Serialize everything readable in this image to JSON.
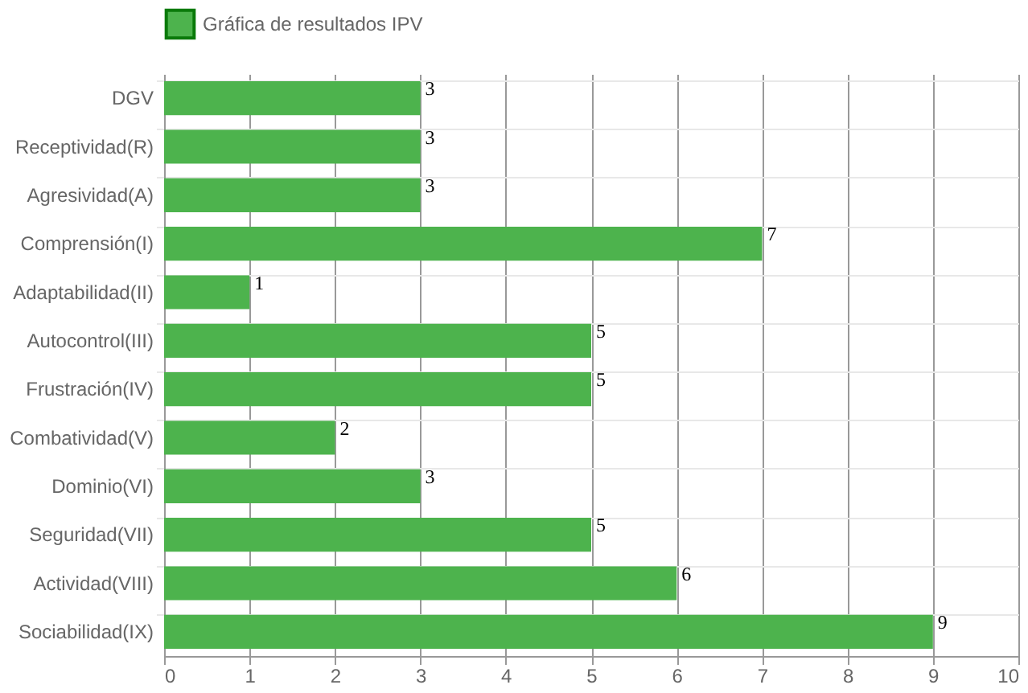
{
  "chart_data": {
    "type": "bar",
    "orientation": "horizontal",
    "categories": [
      "DGV",
      "Receptividad(R)",
      "Agresividad(A)",
      "Comprensión(I)",
      "Adaptabilidad(II)",
      "Autocontrol(III)",
      "Frustración(IV)",
      "Combatividad(V)",
      "Dominio(VI)",
      "Seguridad(VII)",
      "Actividad(VIII)",
      "Sociabilidad(IX)"
    ],
    "series": [
      {
        "name": "Gráfica de resultados IPV",
        "color": "#4db34d",
        "values": [
          3,
          3,
          3,
          7,
          1,
          5,
          5,
          2,
          3,
          5,
          6,
          9
        ]
      }
    ],
    "xlim": [
      0,
      10
    ],
    "xticks": [
      0,
      1,
      2,
      3,
      4,
      5,
      6,
      7,
      8,
      9,
      10
    ],
    "grid": true,
    "legend": "top",
    "data_labels": true
  }
}
